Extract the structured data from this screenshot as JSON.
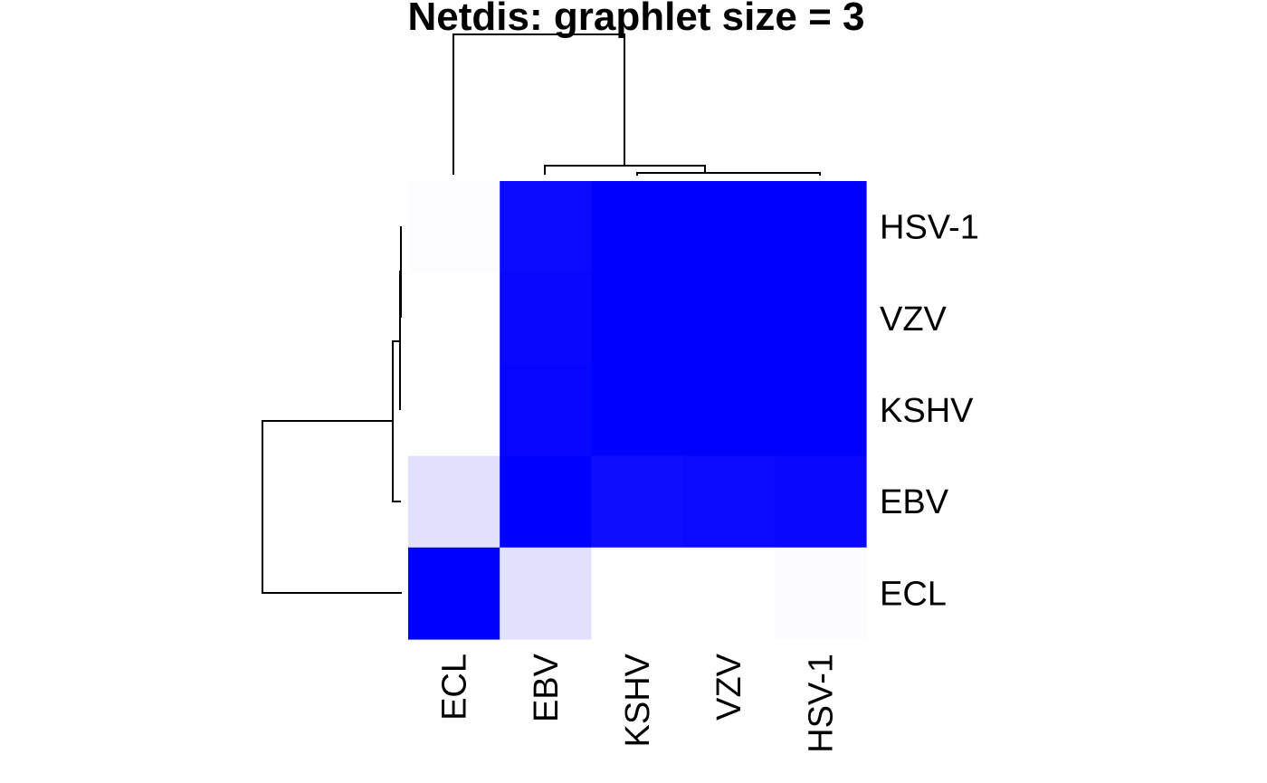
{
  "chart_data": {
    "type": "heatmap",
    "title": "Netdis: graphlet size = 3",
    "col_labels": [
      "ECL",
      "EBV",
      "KSHV",
      "VZV",
      "HSV-1"
    ],
    "row_labels": [
      "HSV-1",
      "VZV",
      "KSHV",
      "EBV",
      "ECL"
    ],
    "cell_colors": [
      [
        "#fdfdff",
        "#0a0aff",
        "#0000ff",
        "#0000ff",
        "#0000ff"
      ],
      [
        "#ffffff",
        "#0808ff",
        "#0000ff",
        "#0000ff",
        "#0000ff"
      ],
      [
        "#ffffff",
        "#0606ff",
        "#0000ff",
        "#0000ff",
        "#0000ff"
      ],
      [
        "#e2e2ff",
        "#0000ff",
        "#0e0eff",
        "#0a0aff",
        "#0808ff"
      ],
      [
        "#0000ff",
        "#e2e2ff",
        "#ffffff",
        "#ffffff",
        "#fcfcff"
      ]
    ],
    "col_dendrogram": "((ECL),(EBV,(KSHV,(VZV,HSV-1))))",
    "row_dendrogram": "((ECL),(EBV,(KSHV,(VZV,HSV-1))))",
    "colors": {
      "low": "#ffffff",
      "high": "#0000ff"
    },
    "legend": "none"
  }
}
